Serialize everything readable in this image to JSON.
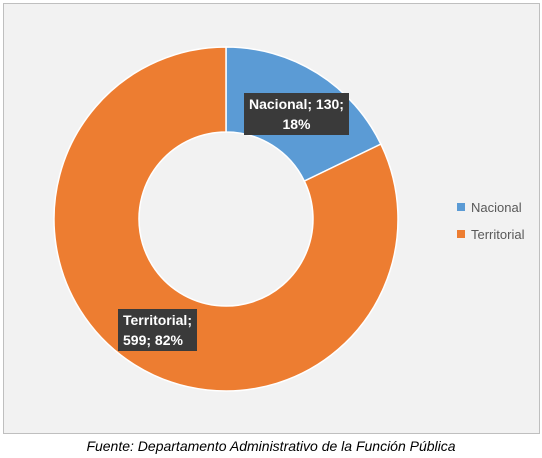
{
  "chart_data": {
    "type": "pie",
    "donut": true,
    "categories": [
      "Nacional",
      "Territorial"
    ],
    "values": [
      130,
      599
    ],
    "percentages": [
      18,
      82
    ],
    "colors": [
      "#5b9bd5",
      "#ed7d31"
    ],
    "data_labels": [
      {
        "line1": "Nacional; 130;",
        "line2": "18%"
      },
      {
        "line1": "Territorial;",
        "line2": "599; 82%"
      }
    ],
    "legend": {
      "position": "right",
      "entries": [
        "Nacional",
        "Territorial"
      ]
    }
  },
  "caption": "Fuente: Departamento Administrativo de la Función Pública"
}
